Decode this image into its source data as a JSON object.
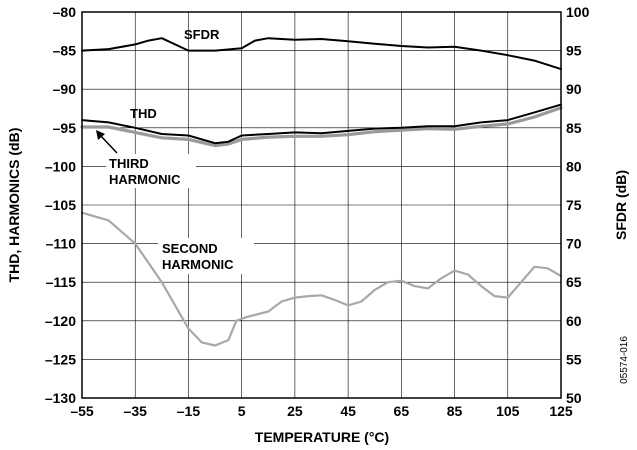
{
  "chart_data": {
    "type": "line",
    "xlabel": "TEMPERATURE (°C)",
    "ylabel_left": "THD, HARMONICS (dB)",
    "ylabel_right": "SFDR (dB)",
    "xlim": [
      -55,
      125
    ],
    "ylim_left": [
      -130,
      -80
    ],
    "ylim_right": [
      50,
      100
    ],
    "xticks": [
      -55,
      -35,
      -15,
      5,
      25,
      45,
      65,
      85,
      105,
      125
    ],
    "yticks_left": [
      -80,
      -85,
      -90,
      -95,
      -100,
      -105,
      -110,
      -115,
      -120,
      -125,
      -130
    ],
    "yticks_right": [
      100,
      95,
      90,
      85,
      80,
      75,
      70,
      65,
      60,
      55,
      50
    ],
    "grid": true,
    "series": [
      {
        "name": "SFDR",
        "axis": "right",
        "color": "#000000",
        "x": [
          -55,
          -45,
          -35,
          -30,
          -25,
          -20,
          -15,
          -5,
          5,
          10,
          15,
          25,
          35,
          45,
          55,
          65,
          75,
          85,
          95,
          105,
          115,
          125
        ],
        "y": [
          95.0,
          95.2,
          95.8,
          96.3,
          96.6,
          95.8,
          95.0,
          95.0,
          95.3,
          96.3,
          96.6,
          96.4,
          96.5,
          96.2,
          95.9,
          95.6,
          95.4,
          95.5,
          95.0,
          94.4,
          93.7,
          92.6
        ]
      },
      {
        "name": "THD",
        "axis": "left",
        "color": "#000000",
        "x": [
          -55,
          -45,
          -35,
          -25,
          -15,
          -5,
          0,
          5,
          15,
          25,
          35,
          45,
          55,
          65,
          75,
          85,
          95,
          105,
          115,
          125
        ],
        "y": [
          -94.0,
          -94.3,
          -95.0,
          -95.8,
          -96.0,
          -97.0,
          -96.8,
          -96.0,
          -95.8,
          -95.6,
          -95.7,
          -95.4,
          -95.1,
          -95.0,
          -94.8,
          -94.8,
          -94.3,
          -94.0,
          -93.0,
          -92.0
        ]
      },
      {
        "name": "THIRD HARMONIC",
        "axis": "left",
        "color": "#9a9a9a",
        "x": [
          -55,
          -45,
          -35,
          -25,
          -15,
          -5,
          0,
          5,
          15,
          25,
          35,
          45,
          55,
          65,
          75,
          85,
          95,
          105,
          115,
          125
        ],
        "y": [
          -94.9,
          -94.9,
          -95.6,
          -96.3,
          -96.5,
          -97.3,
          -97.1,
          -96.5,
          -96.2,
          -96.1,
          -96.1,
          -95.9,
          -95.5,
          -95.3,
          -95.1,
          -95.2,
          -94.8,
          -94.5,
          -93.6,
          -92.4
        ]
      },
      {
        "name": "SECOND HARMONIC",
        "axis": "left",
        "color": "#a8a8a8",
        "x": [
          -55,
          -45,
          -35,
          -30,
          -25,
          -20,
          -15,
          -10,
          -5,
          0,
          3,
          7,
          15,
          20,
          25,
          30,
          35,
          40,
          45,
          50,
          55,
          60,
          65,
          70,
          75,
          80,
          85,
          90,
          95,
          100,
          105,
          110,
          115,
          120,
          125
        ],
        "y": [
          -106.0,
          -107.0,
          -110.0,
          -112.5,
          -115.0,
          -118.0,
          -121.0,
          -122.8,
          -123.2,
          -122.5,
          -120.0,
          -119.5,
          -118.8,
          -117.5,
          -117.0,
          -116.8,
          -116.7,
          -117.3,
          -118.0,
          -117.5,
          -116.0,
          -115.0,
          -114.8,
          -115.5,
          -115.8,
          -114.5,
          -113.5,
          -114.0,
          -115.5,
          -116.8,
          -117.0,
          -115.0,
          -113.0,
          -113.2,
          -114.2
        ]
      }
    ],
    "annotations": [
      "SFDR",
      "THD",
      "THIRD\nHARMONIC",
      "SECOND\nHARMONIC"
    ],
    "figure_id": "05574-016"
  }
}
